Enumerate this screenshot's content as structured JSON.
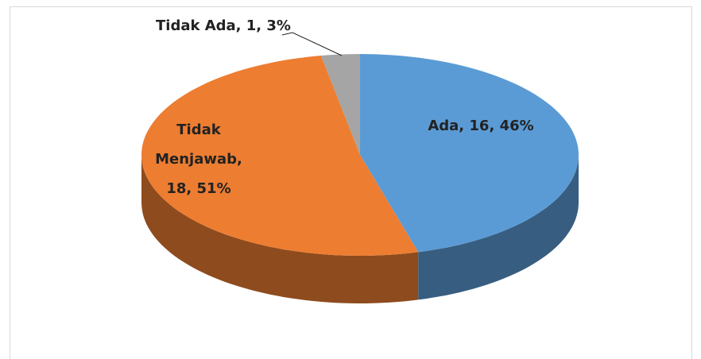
{
  "chart_data": {
    "type": "pie",
    "values": [
      16,
      18,
      1
    ],
    "value_labels": [
      "Ada, 16, 46%",
      "Tidak Menjawab, 18, 51%",
      "Tidak Ada, 1, 3%"
    ],
    "colors": [
      "#5b9bd5",
      "#ed7d31",
      "#a5a5a5"
    ]
  }
}
